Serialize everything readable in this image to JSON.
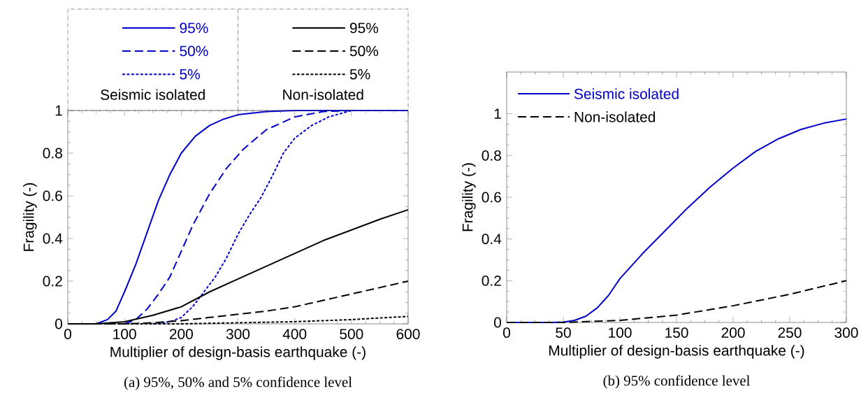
{
  "chart_data": [
    {
      "type": "line",
      "title": "(a) 95%, 50% and 5% confidence level",
      "xlabel": "Multiplier of design-basis earthquake (-)",
      "ylabel": "Fragility (-)",
      "annotations": [
        "Seismic isolated",
        "Non-isolated"
      ],
      "xlim": [
        0,
        600
      ],
      "ylim": [
        0,
        1
      ],
      "xticks": [
        0,
        100,
        200,
        300,
        400,
        500,
        600
      ],
      "yticks": [
        0,
        0.2,
        0.4,
        0.6,
        0.8,
        1
      ],
      "legend": "top",
      "series": [
        {
          "name": "95%",
          "color": "#0000cc",
          "line_style": "solid",
          "x": [
            0,
            50,
            70,
            85,
            100,
            120,
            140,
            160,
            180,
            200,
            225,
            250,
            275,
            300,
            350,
            400,
            600
          ],
          "values": [
            0,
            0,
            0.02,
            0.06,
            0.15,
            0.28,
            0.43,
            0.58,
            0.7,
            0.8,
            0.88,
            0.93,
            0.96,
            0.98,
            0.995,
            1,
            1
          ]
        },
        {
          "name": "50%",
          "color": "#0000cc",
          "line_style": "dashed",
          "x": [
            100,
            120,
            140,
            160,
            180,
            200,
            220,
            250,
            280,
            310,
            350,
            400,
            450,
            500,
            600
          ],
          "values": [
            0,
            0.02,
            0.07,
            0.14,
            0.22,
            0.34,
            0.46,
            0.61,
            0.73,
            0.82,
            0.91,
            0.97,
            0.995,
            1,
            1
          ]
        },
        {
          "name": "5%",
          "color": "#0000cc",
          "line_style": "dotted",
          "x": [
            150,
            180,
            200,
            220,
            240,
            260,
            280,
            300,
            320,
            340,
            360,
            380,
            400,
            430,
            460,
            500,
            600
          ],
          "values": [
            0,
            0.01,
            0.03,
            0.08,
            0.15,
            0.22,
            0.31,
            0.42,
            0.51,
            0.59,
            0.69,
            0.8,
            0.87,
            0.93,
            0.97,
            1,
            1
          ]
        },
        {
          "name": "95%",
          "color": "#000000",
          "line_style": "solid",
          "x": [
            0,
            50,
            100,
            150,
            200,
            250,
            300,
            350,
            400,
            450,
            500,
            550,
            600
          ],
          "values": [
            0,
            0,
            0.01,
            0.04,
            0.08,
            0.15,
            0.21,
            0.27,
            0.33,
            0.39,
            0.44,
            0.49,
            0.535
          ]
        },
        {
          "name": "50%",
          "color": "#000000",
          "line_style": "dashed",
          "x": [
            0,
            100,
            150,
            200,
            250,
            300,
            350,
            400,
            450,
            500,
            550,
            600
          ],
          "values": [
            0,
            0,
            0.005,
            0.015,
            0.03,
            0.045,
            0.06,
            0.08,
            0.11,
            0.14,
            0.17,
            0.2
          ]
        },
        {
          "name": "5%",
          "color": "#000000",
          "line_style": "dotted",
          "x": [
            0,
            200,
            300,
            400,
            500,
            600
          ],
          "values": [
            0,
            0,
            0.005,
            0.01,
            0.02,
            0.035
          ]
        }
      ]
    },
    {
      "type": "line",
      "title": "(b) 95% confidence level",
      "xlabel": "Multiplier of design-basis earthquake (-)",
      "ylabel": "Fragility (-)",
      "xlim": [
        0,
        300
      ],
      "ylim": [
        0,
        1.2
      ],
      "xticks": [
        0,
        50,
        100,
        150,
        200,
        250,
        300
      ],
      "yticks": [
        0,
        0.2,
        0.4,
        0.6,
        0.8,
        1
      ],
      "legend": "top left",
      "series": [
        {
          "name": "Seismic isolated",
          "color": "#0000cc",
          "line_style": "solid",
          "x": [
            0,
            40,
            50,
            60,
            70,
            80,
            90,
            100,
            120,
            140,
            160,
            180,
            200,
            220,
            240,
            260,
            280,
            300
          ],
          "values": [
            0,
            0,
            0.002,
            0.01,
            0.03,
            0.07,
            0.13,
            0.21,
            0.33,
            0.44,
            0.55,
            0.65,
            0.74,
            0.82,
            0.88,
            0.925,
            0.955,
            0.975
          ]
        },
        {
          "name": "Non-isolated",
          "color": "#000000",
          "line_style": "dashed",
          "x": [
            0,
            50,
            100,
            150,
            200,
            250,
            300
          ],
          "values": [
            0,
            0,
            0.01,
            0.035,
            0.08,
            0.135,
            0.2
          ]
        }
      ]
    }
  ]
}
